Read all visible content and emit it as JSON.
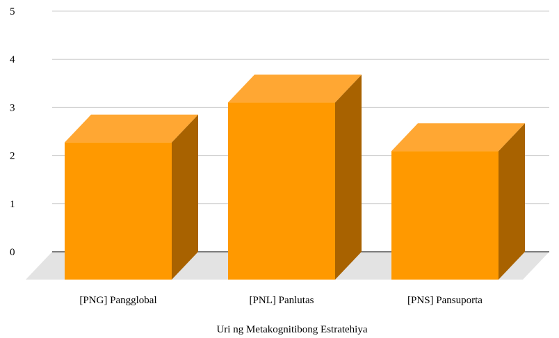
{
  "chart_data": {
    "type": "bar",
    "style": "3d",
    "title": "",
    "xlabel": "Uri ng Metakognitibong Estratehiya",
    "ylabel": "",
    "categories": [
      "[PNG] Pangglobal",
      "[PNL] Panlutas",
      "[PNS] Pansuporta"
    ],
    "values": [
      2.85,
      3.68,
      2.67
    ],
    "ylim": [
      0,
      5
    ],
    "yticks": [
      "0",
      "1",
      "2",
      "3",
      "4",
      "5"
    ],
    "grid": true,
    "legend": "none",
    "colors": {
      "bar_front": "#ff9900",
      "bar_top": "#ffa733",
      "bar_side": "#a86200",
      "floor": "#e3e3e3",
      "grid": "#cccccc",
      "baseline": "#333333"
    }
  }
}
